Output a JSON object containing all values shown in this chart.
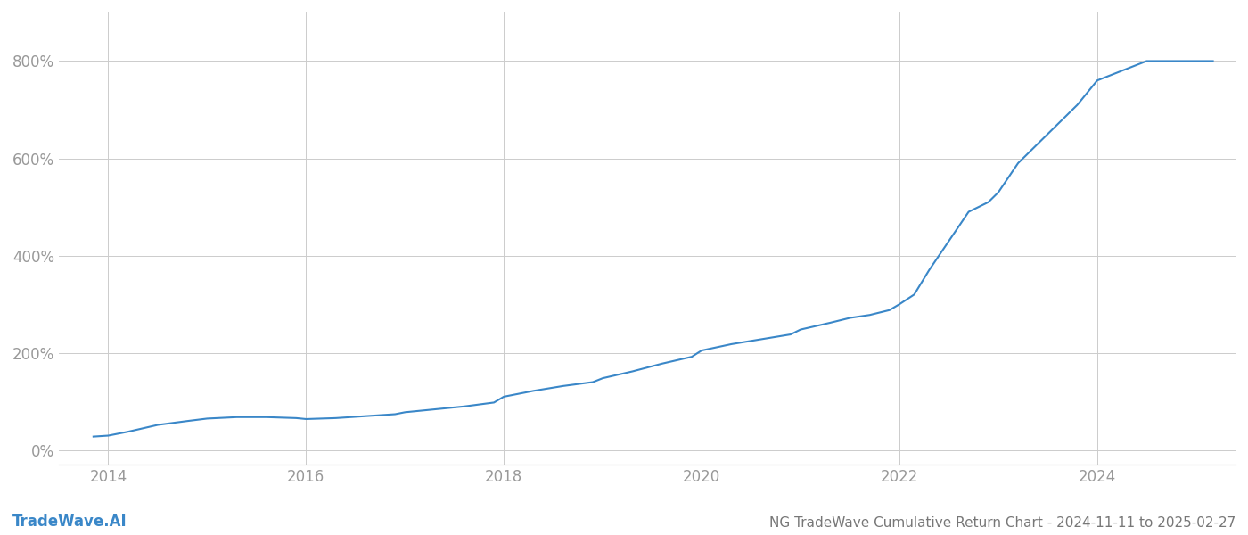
{
  "title": "NG TradeWave Cumulative Return Chart - 2024-11-11 to 2025-02-27",
  "watermark": "TradeWave.AI",
  "line_color": "#3a87c8",
  "background_color": "#ffffff",
  "grid_color": "#cccccc",
  "x_years": [
    2013.85,
    2014.0,
    2014.2,
    2014.5,
    2014.8,
    2015.0,
    2015.3,
    2015.6,
    2015.9,
    2016.0,
    2016.3,
    2016.6,
    2016.9,
    2017.0,
    2017.3,
    2017.6,
    2017.9,
    2018.0,
    2018.3,
    2018.6,
    2018.9,
    2019.0,
    2019.3,
    2019.6,
    2019.9,
    2020.0,
    2020.3,
    2020.6,
    2020.9,
    2021.0,
    2021.3,
    2021.5,
    2021.7,
    2021.9,
    2022.0,
    2022.15,
    2022.3,
    2022.5,
    2022.7,
    2022.9,
    2023.0,
    2023.2,
    2023.5,
    2023.8,
    2024.0,
    2024.5,
    2025.0,
    2025.17
  ],
  "y_values": [
    28,
    30,
    38,
    52,
    60,
    65,
    68,
    68,
    66,
    64,
    66,
    70,
    74,
    78,
    84,
    90,
    98,
    110,
    122,
    132,
    140,
    148,
    162,
    178,
    192,
    205,
    218,
    228,
    238,
    248,
    262,
    272,
    278,
    288,
    300,
    320,
    370,
    430,
    490,
    510,
    530,
    590,
    650,
    710,
    760,
    800,
    800,
    800
  ],
  "xlim": [
    2013.5,
    2025.4
  ],
  "ylim": [
    -30,
    900
  ],
  "yticks": [
    0,
    200,
    400,
    600,
    800
  ],
  "xticks": [
    2014,
    2016,
    2018,
    2020,
    2022,
    2024
  ],
  "line_width": 1.5,
  "tick_label_color": "#999999",
  "title_color": "#777777",
  "watermark_color": "#3a87c8",
  "title_fontsize": 11,
  "tick_fontsize": 12,
  "watermark_fontsize": 12
}
